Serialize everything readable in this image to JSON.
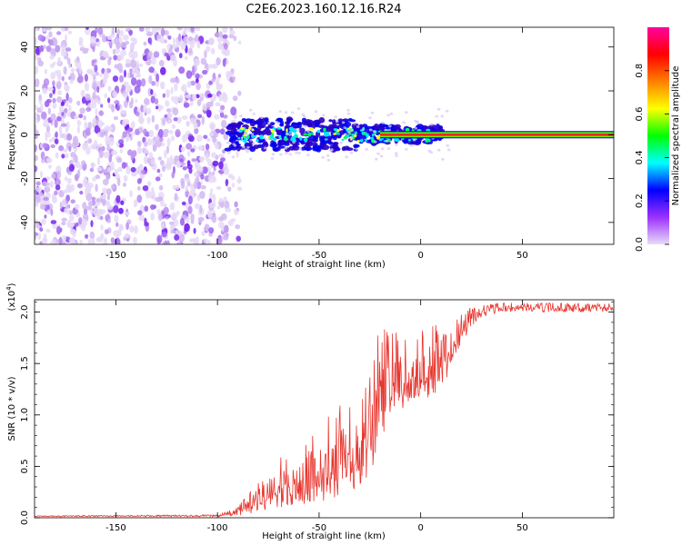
{
  "title": "C2E6.2023.160.12.16.R24",
  "chart_data": [
    {
      "type": "heatmap",
      "title": "C2E6.2023.160.12.16.R24",
      "xlabel": "Height of straight line (km)",
      "ylabel": "Frequency (Hz)",
      "xlim": [
        -190,
        95
      ],
      "ylim": [
        -50,
        49
      ],
      "xticks": [
        -150,
        -100,
        -50,
        0,
        50
      ],
      "yticks": [
        -40,
        -20,
        0,
        20,
        40
      ],
      "colorbar": {
        "label": "Normalized spectral amplitude",
        "range": [
          0.0,
          1.0
        ],
        "ticks": [
          "0.0",
          "0.2",
          "0.4",
          "0.6",
          "0.8"
        ],
        "colors": [
          "#e8dcf7",
          "#9b30ff",
          "#0000ff",
          "#00ffff",
          "#00ff00",
          "#ffff00",
          "#ff8000",
          "#ff0000",
          "#ff00a0"
        ]
      },
      "regions": [
        {
          "name": "noise",
          "x_range": [
            -190,
            -95
          ],
          "freq_range": [
            -50,
            49
          ],
          "amplitude": 0.08
        },
        {
          "name": "signal-onset",
          "x_range": [
            -95,
            10
          ],
          "freq_center": 0,
          "freq_halfwidth": 7,
          "amplitude": 0.35
        },
        {
          "name": "steady-carrier",
          "x_range": [
            -20,
            95
          ],
          "freq_center": 0,
          "amplitude": 0.95
        }
      ]
    },
    {
      "type": "line",
      "title": "",
      "xlabel": "Height of straight line (km)",
      "ylabel": "SNR (10 * v/v)",
      "multiplier": "(x10",
      "multiplier_exp": "4",
      "xlim": [
        -190,
        95
      ],
      "ylim": [
        0,
        2.12
      ],
      "xticks": [
        -150,
        -100,
        -50,
        0,
        50
      ],
      "yticks": [
        "0.0",
        "0.5",
        "1.0",
        "1.5",
        "2.0"
      ],
      "ytick_values": [
        0,
        0.5,
        1.0,
        1.5,
        2.0
      ],
      "color": "#e8352e",
      "envelope": {
        "x": [
          -190,
          -100,
          -90,
          -80,
          -70,
          -60,
          -50,
          -40,
          -30,
          -25,
          -20,
          -15,
          -10,
          -5,
          0,
          5,
          10,
          15,
          20,
          25,
          30,
          40,
          50,
          60,
          70,
          80,
          90,
          95
        ],
        "low": [
          0.01,
          0.01,
          0.02,
          0.05,
          0.1,
          0.12,
          0.15,
          0.2,
          0.25,
          0.35,
          0.6,
          0.95,
          1.0,
          1.05,
          1.1,
          1.15,
          1.25,
          1.45,
          1.7,
          1.85,
          1.95,
          2.0,
          2.0,
          2.0,
          2.0,
          2.0,
          2.0,
          2.0
        ],
        "high": [
          0.02,
          0.03,
          0.1,
          0.4,
          0.6,
          0.65,
          0.9,
          1.1,
          1.2,
          1.4,
          1.9,
          1.8,
          1.85,
          1.65,
          1.85,
          1.85,
          2.0,
          1.95,
          2.0,
          2.05,
          2.07,
          2.09,
          2.09,
          2.09,
          2.09,
          2.09,
          2.09,
          2.08
        ]
      }
    }
  ]
}
